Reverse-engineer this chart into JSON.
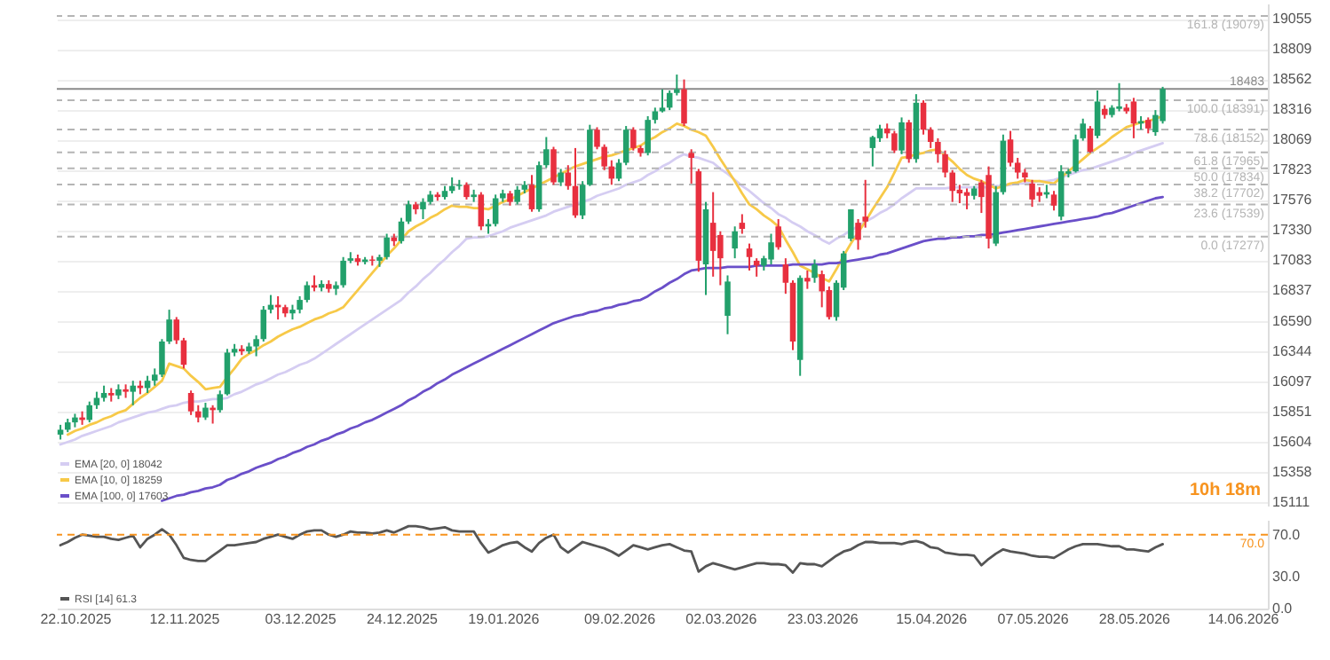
{
  "chart_data": [
    {
      "type": "candlestick",
      "categories": [
        null,
        null,
        "22.10.2025",
        null,
        null,
        null,
        null,
        null,
        null,
        null,
        null,
        null,
        null,
        null,
        null,
        null,
        null,
        "12.11.2025",
        null,
        null,
        null,
        null,
        null,
        null,
        null,
        null,
        null,
        null,
        null,
        null,
        null,
        null,
        null,
        "03.12.2025",
        null,
        null,
        null,
        null,
        null,
        null,
        null,
        null,
        null,
        null,
        null,
        null,
        null,
        "24.12.2025",
        null,
        null,
        null,
        null,
        null,
        null,
        null,
        null,
        null,
        null,
        null,
        null,
        null,
        "19.01.2026",
        null,
        null,
        null,
        null,
        null,
        null,
        null,
        null,
        null,
        null,
        null,
        null,
        null,
        null,
        null,
        "09.02.2026",
        null,
        null,
        null,
        null,
        null,
        null,
        null,
        null,
        null,
        null,
        null,
        null,
        null,
        "02.03.2026",
        null,
        null,
        null,
        null,
        null,
        null,
        null,
        null,
        null,
        null,
        null,
        null,
        null,
        "23.03.2026",
        null,
        null,
        null,
        null,
        null,
        null,
        null,
        null,
        null,
        null,
        null,
        null,
        null,
        null,
        "15.04.2026",
        null,
        null,
        null,
        null,
        null,
        null,
        null,
        null,
        null,
        null,
        null,
        null,
        null,
        "07.05.2026",
        null,
        null,
        null,
        null,
        null,
        null,
        null,
        null,
        null,
        null,
        null,
        null,
        null,
        "28.05.2026",
        null,
        null,
        null,
        null,
        null,
        null,
        null,
        null,
        null,
        null,
        null,
        null,
        null,
        null,
        "14.06.2026",
        null,
        null,
        null
      ],
      "ohlc": [
        [
          15660,
          15740,
          15620,
          15700
        ],
        [
          15700,
          15790,
          15680,
          15760
        ],
        [
          15760,
          15830,
          15720,
          15800
        ],
        [
          15800,
          15850,
          15740,
          15780
        ],
        [
          15780,
          15930,
          15760,
          15900
        ],
        [
          15900,
          16010,
          15870,
          15960
        ],
        [
          15960,
          16060,
          15930,
          16000
        ],
        [
          16000,
          16040,
          15930,
          15980
        ],
        [
          15980,
          16070,
          15950,
          16030
        ],
        [
          16030,
          16070,
          15960,
          16010
        ],
        [
          16010,
          16100,
          15900,
          16060
        ],
        [
          16060,
          16100,
          15990,
          16040
        ],
        [
          16040,
          16140,
          16000,
          16100
        ],
        [
          16100,
          16200,
          16060,
          16150
        ],
        [
          16150,
          16440,
          16130,
          16420
        ],
        [
          16420,
          16680,
          16400,
          16600
        ],
        [
          16600,
          16620,
          16400,
          16430
        ],
        [
          16430,
          16450,
          16200,
          16230
        ],
        [
          16000,
          16020,
          15820,
          15850
        ],
        [
          15850,
          15900,
          15760,
          15800
        ],
        [
          15800,
          15920,
          15780,
          15880
        ],
        [
          15880,
          15900,
          15750,
          15860
        ],
        [
          15860,
          16020,
          15840,
          15990
        ],
        [
          15990,
          16360,
          15980,
          16330
        ],
        [
          16330,
          16400,
          16300,
          16360
        ],
        [
          16360,
          16390,
          16310,
          16340
        ],
        [
          16340,
          16410,
          16320,
          16380
        ],
        [
          16380,
          16470,
          16300,
          16440
        ],
        [
          16440,
          16710,
          16420,
          16680
        ],
        [
          16680,
          16800,
          16650,
          16720
        ],
        [
          16720,
          16790,
          16600,
          16700
        ],
        [
          16700,
          16720,
          16620,
          16650
        ],
        [
          16650,
          16720,
          16600,
          16680
        ],
        [
          16680,
          16790,
          16650,
          16760
        ],
        [
          16760,
          16910,
          16740,
          16880
        ],
        [
          16880,
          16960,
          16830,
          16860
        ],
        [
          16860,
          16920,
          16830,
          16890
        ],
        [
          16890,
          16920,
          16820,
          16850
        ],
        [
          16850,
          16910,
          16800,
          16880
        ],
        [
          16880,
          17110,
          16860,
          17080
        ],
        [
          17080,
          17150,
          17060,
          17100
        ],
        [
          17100,
          17130,
          17040,
          17070
        ],
        [
          17070,
          17110,
          17050,
          17090
        ],
        [
          17090,
          17120,
          17040,
          17080
        ],
        [
          17080,
          17130,
          17030,
          17110
        ],
        [
          17110,
          17300,
          17090,
          17270
        ],
        [
          17270,
          17300,
          17200,
          17240
        ],
        [
          17240,
          17430,
          17220,
          17400
        ],
        [
          17400,
          17570,
          17380,
          17540
        ],
        [
          17540,
          17560,
          17460,
          17500
        ],
        [
          17500,
          17590,
          17420,
          17560
        ],
        [
          17560,
          17650,
          17540,
          17620
        ],
        [
          17620,
          17640,
          17570,
          17600
        ],
        [
          17600,
          17690,
          17580,
          17650
        ],
        [
          17650,
          17760,
          17630,
          17690
        ],
        [
          17690,
          17740,
          17660,
          17700
        ],
        [
          17700,
          17720,
          17580,
          17600
        ],
        [
          17600,
          17660,
          17560,
          17620
        ],
        [
          17620,
          17640,
          17330,
          17360
        ],
        [
          17360,
          17420,
          17300,
          17380
        ],
        [
          17380,
          17620,
          17360,
          17590
        ],
        [
          17590,
          17660,
          17560,
          17630
        ],
        [
          17630,
          17650,
          17530,
          17560
        ],
        [
          17560,
          17690,
          17540,
          17660
        ],
        [
          17660,
          17730,
          17630,
          17700
        ],
        [
          17700,
          17780,
          17480,
          17500
        ],
        [
          17500,
          17890,
          17480,
          17860
        ],
        [
          17860,
          18090,
          17840,
          17990
        ],
        [
          17990,
          18010,
          17700,
          17720
        ],
        [
          17720,
          17830,
          17690,
          17800
        ],
        [
          17800,
          17860,
          17660,
          17690
        ],
        [
          17690,
          18000,
          17430,
          17450
        ],
        [
          17450,
          17730,
          17420,
          17700
        ],
        [
          17700,
          18190,
          17690,
          18150
        ],
        [
          18150,
          18170,
          17990,
          18010
        ],
        [
          18010,
          18030,
          17820,
          17850
        ],
        [
          17850,
          17900,
          17700,
          17750
        ],
        [
          17750,
          17910,
          17730,
          17880
        ],
        [
          17880,
          18180,
          17860,
          18150
        ],
        [
          18150,
          18170,
          17980,
          18000
        ],
        [
          18000,
          18020,
          17930,
          17960
        ],
        [
          17960,
          18260,
          17940,
          18230
        ],
        [
          18230,
          18330,
          18200,
          18300
        ],
        [
          18300,
          18480,
          18290,
          18330
        ],
        [
          18330,
          18470,
          18310,
          18450
        ],
        [
          18450,
          18600,
          18430,
          18480
        ],
        [
          18480,
          18560,
          18180,
          18200
        ],
        [
          17960,
          17990,
          17710,
          17920
        ],
        [
          17810,
          17830,
          16990,
          17080
        ],
        [
          17050,
          17560,
          16800,
          17500
        ],
        [
          17390,
          17640,
          16950,
          17160
        ],
        [
          17290,
          17320,
          16880,
          17100
        ],
        [
          16630,
          16960,
          16480,
          16910
        ],
        [
          17180,
          17360,
          17100,
          17320
        ],
        [
          17390,
          17460,
          17300,
          17340
        ],
        [
          17180,
          17220,
          17000,
          17110
        ],
        [
          17080,
          17100,
          16950,
          17040
        ],
        [
          17040,
          17120,
          17000,
          17100
        ],
        [
          17090,
          17300,
          17050,
          17230
        ],
        [
          17360,
          17420,
          17170,
          17190
        ],
        [
          17050,
          17100,
          16810,
          16900
        ],
        [
          16900,
          16920,
          16350,
          16420
        ],
        [
          16270,
          16960,
          16140,
          16940
        ],
        [
          16940,
          17000,
          16850,
          16910
        ],
        [
          16940,
          17090,
          16900,
          17050
        ],
        [
          16970,
          17000,
          16700,
          16830
        ],
        [
          16840,
          16870,
          16600,
          16620
        ],
        [
          16620,
          16920,
          16590,
          16900
        ],
        [
          16860,
          17160,
          16840,
          17140
        ],
        [
          17260,
          17500,
          17240,
          17500
        ],
        [
          17390,
          17420,
          17170,
          17250
        ],
        [
          17440,
          17740,
          17350,
          17400
        ],
        [
          18000,
          18100,
          17850,
          18090
        ],
        [
          18080,
          18190,
          18050,
          18160
        ],
        [
          18160,
          18200,
          18080,
          18120
        ],
        [
          18120,
          18140,
          17960,
          17980
        ],
        [
          17980,
          18250,
          17950,
          18210
        ],
        [
          18210,
          18230,
          17880,
          17910
        ],
        [
          17910,
          18440,
          17880,
          18370
        ],
        [
          18370,
          18390,
          18110,
          18150
        ],
        [
          18150,
          18170,
          18000,
          18050
        ],
        [
          18050,
          18080,
          17880,
          17950
        ],
        [
          17950,
          17980,
          17760,
          17800
        ],
        [
          17800,
          17820,
          17560,
          17650
        ],
        [
          17660,
          17700,
          17550,
          17630
        ],
        [
          17640,
          17670,
          17500,
          17610
        ],
        [
          17610,
          17690,
          17580,
          17670
        ],
        [
          17720,
          17740,
          17470,
          17600
        ],
        [
          17780,
          17850,
          17180,
          17260
        ],
        [
          17220,
          17690,
          17200,
          17640
        ],
        [
          17640,
          18110,
          17620,
          18060
        ],
        [
          18070,
          18140,
          17850,
          17880
        ],
        [
          17880,
          17920,
          17750,
          17800
        ],
        [
          17800,
          17830,
          17720,
          17760
        ],
        [
          17710,
          17740,
          17520,
          17580
        ],
        [
          17640,
          17680,
          17560,
          17610
        ],
        [
          17620,
          17700,
          17590,
          17640
        ],
        [
          17620,
          17650,
          17490,
          17530
        ],
        [
          17440,
          17860,
          17410,
          17810
        ],
        [
          17790,
          17830,
          17760,
          17810
        ],
        [
          17810,
          18110,
          17800,
          18070
        ],
        [
          18080,
          18240,
          18060,
          18200
        ],
        [
          18160,
          18180,
          17960,
          17970
        ],
        [
          18100,
          18470,
          18080,
          18380
        ],
        [
          18320,
          18350,
          18240,
          18270
        ],
        [
          18270,
          18350,
          18250,
          18330
        ],
        [
          18320,
          18530,
          18300,
          18340
        ],
        [
          18330,
          18360,
          18280,
          18300
        ],
        [
          18380,
          18410,
          18080,
          18200
        ],
        [
          18200,
          18260,
          18150,
          18220
        ],
        [
          18230,
          18250,
          18120,
          18160
        ],
        [
          18130,
          18310,
          18100,
          18270
        ],
        [
          18220,
          18500,
          18200,
          18483
        ],
        null,
        null,
        null,
        null,
        null,
        null,
        null,
        null,
        null,
        null,
        null,
        null,
        null,
        null
      ],
      "colors": [
        "#22a06b",
        "#22a06b",
        "#22a06b",
        "#e8303f",
        "#22a06b",
        "#22a06b",
        "#22a06b",
        "#e8303f",
        "#22a06b",
        "#e8303f",
        "#22a06b",
        "#e8303f",
        "#22a06b",
        "#22a06b",
        "#22a06b",
        "#22a06b",
        "#e8303f",
        "#e8303f",
        "#e8303f",
        "#e8303f",
        "#22a06b",
        "#e8303f",
        "#22a06b",
        "#22a06b",
        "#22a06b",
        "#e8303f",
        "#22a06b",
        "#22a06b",
        "#22a06b",
        "#22a06b",
        "#e8303f",
        "#e8303f",
        "#22a06b",
        "#22a06b",
        "#22a06b",
        "#e8303f",
        "#22a06b",
        "#e8303f",
        "#22a06b",
        "#22a06b",
        "#22a06b",
        "#e8303f",
        "#22a06b",
        "#e8303f",
        "#22a06b",
        "#22a06b",
        "#e8303f",
        "#22a06b",
        "#22a06b",
        "#e8303f",
        "#22a06b",
        "#22a06b",
        "#e8303f",
        "#22a06b",
        "#22a06b",
        "#22a06b",
        "#e8303f",
        "#22a06b",
        "#e8303f",
        "#22a06b",
        "#22a06b",
        "#22a06b",
        "#e8303f",
        "#22a06b",
        "#22a06b",
        "#e8303f",
        "#22a06b",
        "#22a06b",
        "#e8303f",
        "#22a06b",
        "#e8303f",
        "#e8303f",
        "#22a06b",
        "#22a06b",
        "#e8303f",
        "#e8303f",
        "#e8303f",
        "#22a06b",
        "#22a06b",
        "#e8303f",
        "#e8303f",
        "#22a06b",
        "#22a06b",
        "#22a06b",
        "#22a06b",
        "#22a06b",
        "#e8303f",
        "#e8303f",
        "#e8303f",
        "#22a06b",
        "#e8303f",
        "#e8303f",
        "#22a06b",
        "#22a06b",
        "#e8303f",
        "#e8303f",
        "#e8303f",
        "#22a06b",
        "#22a06b",
        "#e8303f",
        "#e8303f",
        "#e8303f",
        "#22a06b",
        "#e8303f",
        "#22a06b",
        "#e8303f",
        "#e8303f",
        "#22a06b",
        "#22a06b",
        "#22a06b",
        "#e8303f",
        "#e8303f",
        "#22a06b",
        "#22a06b",
        "#e8303f",
        "#e8303f",
        "#22a06b",
        "#e8303f",
        "#22a06b",
        "#e8303f",
        "#e8303f",
        "#e8303f",
        "#e8303f",
        "#e8303f",
        "#e8303f",
        "#e8303f",
        "#22a06b",
        "#e8303f",
        "#e8303f",
        "#22a06b",
        "#22a06b",
        "#e8303f",
        "#e8303f",
        "#e8303f",
        "#e8303f",
        "#e8303f",
        "#22a06b",
        "#e8303f",
        "#22a06b",
        "#22a06b",
        "#22a06b",
        "#22a06b",
        "#e8303f",
        "#22a06b",
        "#e8303f",
        "#22a06b",
        "#22a06b",
        "#e8303f",
        "#e8303f",
        "#22a06b",
        "#e8303f",
        "#22a06b",
        "#22a06b",
        null,
        null,
        null,
        null,
        null,
        null,
        null,
        null,
        null,
        null,
        null,
        null,
        null,
        null
      ],
      "series": [
        {
          "name": "EMA [20, 0] 18042",
          "type": "line",
          "color": "#d5cdf2",
          "values": [
            15580,
            15600,
            15620,
            15650,
            15670,
            15690,
            15710,
            15730,
            15760,
            15780,
            15800,
            15820,
            15840,
            15850,
            15870,
            15890,
            15900,
            15920,
            15930,
            15930,
            15940,
            15950,
            15950,
            15960,
            15990,
            16010,
            16040,
            16070,
            16090,
            16120,
            16150,
            16170,
            16200,
            16230,
            16250,
            16280,
            16320,
            16360,
            16400,
            16440,
            16480,
            16520,
            16560,
            16600,
            16640,
            16680,
            16720,
            16760,
            16820,
            16870,
            16930,
            16980,
            17040,
            17090,
            17150,
            17200,
            17260,
            17270,
            17270,
            17280,
            17300,
            17320,
            17350,
            17370,
            17390,
            17410,
            17430,
            17450,
            17480,
            17500,
            17520,
            17540,
            17560,
            17580,
            17610,
            17630,
            17650,
            17670,
            17700,
            17720,
            17740,
            17780,
            17810,
            17850,
            17880,
            17920,
            17950,
            17930,
            17920,
            17900,
            17880,
            17830,
            17790,
            17740,
            17690,
            17650,
            17600,
            17550,
            17510,
            17460,
            17430,
            17390,
            17360,
            17320,
            17290,
            17250,
            17220,
            17260,
            17290,
            17330,
            17360,
            17400,
            17430,
            17470,
            17500,
            17540,
            17590,
            17630,
            17670,
            17670,
            17670,
            17670,
            17670,
            17680,
            17680,
            17680,
            17680,
            17680,
            17680,
            17690,
            17690,
            17700,
            17710,
            17710,
            17720,
            17730,
            17730,
            17740,
            17760,
            17780,
            17800,
            17820,
            17830,
            17850,
            17870,
            17890,
            17910,
            17930,
            17960,
            17980,
            18000,
            18020,
            18040,
            null,
            null,
            null,
            null,
            null,
            null,
            null,
            null,
            null,
            null,
            null,
            null,
            null,
            null
          ]
        },
        {
          "name": "EMA [10, 0] 18259",
          "type": "line",
          "color": "#f7c948",
          "values": [
            null,
            15660,
            15690,
            15710,
            15740,
            15760,
            15790,
            15810,
            15840,
            15860,
            15910,
            15960,
            16000,
            16050,
            16100,
            16240,
            16220,
            16200,
            16140,
            16090,
            16030,
            16040,
            16050,
            16130,
            16200,
            16280,
            16320,
            16350,
            16390,
            16420,
            16460,
            16490,
            16520,
            16540,
            16570,
            16600,
            16620,
            16650,
            16670,
            16700,
            16770,
            16840,
            16910,
            16980,
            17050,
            17120,
            17180,
            17250,
            17320,
            17360,
            17390,
            17430,
            17460,
            17500,
            17530,
            17520,
            17520,
            17510,
            17510,
            17500,
            17530,
            17560,
            17580,
            17610,
            17640,
            17670,
            17700,
            17730,
            17760,
            17790,
            17820,
            17850,
            17870,
            17890,
            17910,
            17930,
            17940,
            17960,
            17980,
            18000,
            18020,
            18060,
            18090,
            18130,
            18160,
            18200,
            18180,
            18150,
            18130,
            18100,
            18010,
            17910,
            17820,
            17730,
            17630,
            17540,
            17500,
            17450,
            17410,
            17360,
            17250,
            17150,
            17040,
            17010,
            16980,
            16940,
            16910,
            17010,
            17120,
            17220,
            17310,
            17400,
            17500,
            17590,
            17680,
            17800,
            17920,
            17930,
            17950,
            17960,
            17980,
            17990,
            17940,
            17890,
            17830,
            17780,
            17750,
            17730,
            17700,
            17670,
            17690,
            17710,
            17720,
            17740,
            17730,
            17730,
            17720,
            17710,
            17760,
            17810,
            17860,
            17910,
            17960,
            18000,
            18040,
            18090,
            18130,
            18170,
            18190,
            18210,
            18220,
            18240,
            18260,
            null,
            null,
            null,
            null,
            null,
            null,
            null,
            null,
            null,
            null,
            null,
            null,
            null,
            null
          ]
        },
        {
          "name": "EMA [100, 0] 17603",
          "type": "line",
          "color": "#6a4fc9",
          "values": [
            null,
            null,
            null,
            null,
            null,
            null,
            null,
            null,
            null,
            null,
            null,
            null,
            null,
            null,
            15120,
            15140,
            15160,
            15170,
            15190,
            15200,
            15220,
            15230,
            15250,
            15290,
            15310,
            15340,
            15360,
            15390,
            15410,
            15430,
            15460,
            15480,
            15510,
            15530,
            15560,
            15580,
            15610,
            15630,
            15660,
            15680,
            15710,
            15730,
            15760,
            15780,
            15810,
            15840,
            15870,
            15900,
            15940,
            15970,
            16010,
            16040,
            16080,
            16110,
            16150,
            16180,
            16210,
            16240,
            16270,
            16300,
            16330,
            16360,
            16390,
            16420,
            16450,
            16480,
            16510,
            16540,
            16570,
            16590,
            16610,
            16630,
            16640,
            16660,
            16670,
            16690,
            16700,
            16720,
            16730,
            16750,
            16760,
            16790,
            16830,
            16860,
            16900,
            16930,
            16970,
            17000,
            17010,
            17020,
            17020,
            17020,
            17030,
            17030,
            17030,
            17030,
            17040,
            17040,
            17040,
            17040,
            17040,
            17050,
            17050,
            17050,
            17050,
            17050,
            17060,
            17060,
            17070,
            17080,
            17090,
            17100,
            17110,
            17130,
            17140,
            17160,
            17180,
            17200,
            17220,
            17240,
            17250,
            17260,
            17260,
            17270,
            17270,
            17280,
            17280,
            17290,
            17290,
            17300,
            17310,
            17320,
            17330,
            17340,
            17350,
            17360,
            17370,
            17380,
            17390,
            17400,
            17410,
            17420,
            17430,
            17440,
            17460,
            17470,
            17490,
            17510,
            17530,
            17550,
            17570,
            17590,
            17600,
            null,
            null,
            null,
            null,
            null,
            null,
            null,
            null,
            null,
            null,
            null,
            null,
            null,
            null
          ]
        }
      ],
      "ylim": [
        15080,
        19180
      ],
      "yticks": [
        15111,
        15358,
        15604,
        15851,
        16097,
        16344,
        16590,
        16837,
        17083,
        17330,
        17576,
        17823,
        18069,
        18316,
        18562,
        18809,
        19055
      ],
      "grid": "y",
      "legend": "bottom left",
      "tick_labels": "y",
      "ref_lines": [
        {
          "axis": "y",
          "value": 19079,
          "label": "161.8 (19079)",
          "color": "#b5b5b5",
          "line_style": "dashed"
        },
        {
          "axis": "y",
          "value": 18391,
          "label": "100.0 (18391)",
          "color": "#b5b5b5",
          "line_style": "dashed"
        },
        {
          "axis": "y",
          "value": 18152,
          "label": "78.6 (18152)",
          "color": "#b5b5b5",
          "line_style": "dashed"
        },
        {
          "axis": "y",
          "value": 17965,
          "label": "61.8 (17965)",
          "color": "#b5b5b5",
          "line_style": "dashed"
        },
        {
          "axis": "y",
          "value": 17834,
          "label": "50.0 (17834)",
          "color": "#b5b5b5",
          "line_style": "dashed"
        },
        {
          "axis": "y",
          "value": 17702,
          "label": "38.2 (17702)",
          "color": "#b5b5b5",
          "line_style": "dashed"
        },
        {
          "axis": "y",
          "value": 17539,
          "label": "23.6 (17539)",
          "color": "#b5b5b5",
          "line_style": "dashed"
        },
        {
          "axis": "y",
          "value": 17277,
          "label": "0.0 (17277)",
          "color": "#b5b5b5",
          "line_style": "dashed"
        },
        {
          "axis": "y",
          "value": 18483,
          "label": "18483",
          "color": "#8a8a8a",
          "line_style": "solid"
        }
      ],
      "annotations": [
        "10h 18m"
      ]
    },
    {
      "type": "line",
      "categories": [
        null,
        null,
        "22.10.2025",
        null,
        null,
        null,
        null,
        null,
        null,
        null,
        null,
        null,
        null,
        null,
        null,
        null,
        null,
        "12.11.2025",
        null,
        null,
        null,
        null,
        null,
        null,
        null,
        null,
        null,
        null,
        null,
        null,
        null,
        null,
        null,
        "03.12.2025",
        null,
        null,
        null,
        null,
        null,
        null,
        null,
        null,
        null,
        null,
        null,
        null,
        null,
        "24.12.2025",
        null,
        null,
        null,
        null,
        null,
        null,
        null,
        null,
        null,
        null,
        null,
        null,
        null,
        "19.01.2026",
        null,
        null,
        null,
        null,
        null,
        null,
        null,
        null,
        null,
        null,
        null,
        null,
        null,
        null,
        null,
        "09.02.2026",
        null,
        null,
        null,
        null,
        null,
        null,
        null,
        null,
        null,
        null,
        null,
        null,
        null,
        "02.03.2026",
        null,
        null,
        null,
        null,
        null,
        null,
        null,
        null,
        null,
        null,
        null,
        null,
        null,
        "23.03.2026",
        null,
        null,
        null,
        null,
        null,
        null,
        null,
        null,
        null,
        null,
        null,
        null,
        null,
        null,
        "15.04.2026",
        null,
        null,
        null,
        null,
        null,
        null,
        null,
        null,
        null,
        null,
        null,
        null,
        null,
        "07.05.2026",
        null,
        null,
        null,
        null,
        null,
        null,
        null,
        null,
        null,
        null,
        null,
        null,
        null,
        "28.05.2026",
        null,
        null,
        null,
        null,
        null,
        null,
        null,
        null,
        null,
        null,
        null,
        null,
        null,
        null,
        "14.06.2026",
        null,
        null,
        null
      ],
      "series": [
        {
          "name": "RSI [14] 61.3",
          "type": "line",
          "color": "#555555",
          "values": [
            60,
            63,
            67,
            70,
            69,
            68,
            68,
            66,
            65,
            67,
            69,
            58,
            66,
            70,
            75,
            70,
            60,
            48,
            46,
            45,
            45,
            50,
            55,
            60,
            60,
            61,
            62,
            63,
            66,
            68,
            70,
            68,
            66,
            70,
            73,
            74,
            74,
            70,
            68,
            70,
            73,
            72,
            72,
            71,
            72,
            74,
            72,
            75,
            78,
            78,
            77,
            75,
            76,
            77,
            74,
            73,
            73,
            73,
            62,
            53,
            56,
            60,
            62,
            63,
            58,
            54,
            62,
            67,
            70,
            58,
            53,
            58,
            63,
            61,
            59,
            57,
            54,
            50,
            55,
            60,
            58,
            56,
            58,
            60,
            61,
            58,
            55,
            54,
            35,
            40,
            43,
            41,
            39,
            37,
            39,
            41,
            43,
            43,
            42,
            42,
            41,
            34,
            43,
            42,
            42,
            40,
            45,
            50,
            54,
            56,
            60,
            63,
            63,
            62,
            62,
            62,
            61,
            63,
            64,
            62,
            58,
            57,
            53,
            52,
            51,
            51,
            50,
            41,
            47,
            52,
            56,
            54,
            53,
            52,
            50,
            49,
            49,
            48,
            52,
            56,
            59,
            61,
            61,
            61,
            60,
            59,
            59,
            56,
            56,
            55,
            54,
            58,
            61,
            null,
            null,
            null,
            null,
            null,
            null,
            null,
            null,
            null,
            null,
            null,
            null,
            null,
            null
          ]
        }
      ],
      "ylim": [
        0,
        84
      ],
      "yticks": [
        {
          "value": 0,
          "label": "0.0"
        },
        {
          "value": 30,
          "label": "30.0"
        },
        {
          "value": 70,
          "label": "70.0"
        }
      ],
      "legend": "bottom left",
      "ref_lines": [
        {
          "axis": "y",
          "value": 70,
          "label": "70.0",
          "color": "#f7931e",
          "line_style": "dashed"
        }
      ]
    }
  ]
}
